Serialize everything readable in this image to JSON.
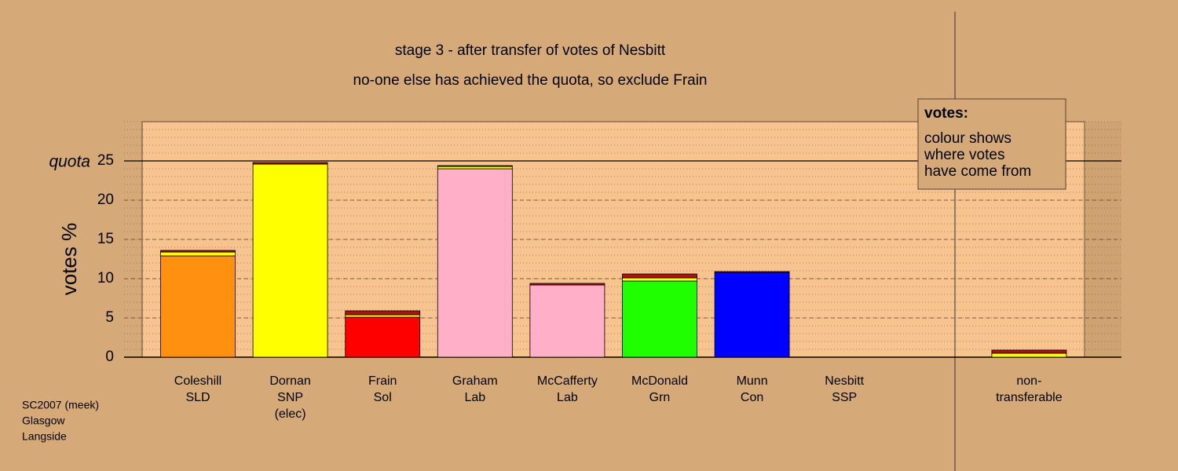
{
  "chart_data": {
    "type": "stacked_bar",
    "title": "stage 3 - after transfer of votes of Nesbitt",
    "subtitle": "no-one else has achieved the quota, so exclude Frain",
    "y_label": "votes %",
    "categories": [
      [
        "Coleshill",
        "SLD"
      ],
      [
        "Dornan",
        "SNP",
        "(elec)"
      ],
      [
        "Frain",
        "Sol"
      ],
      [
        "Graham",
        "Lab"
      ],
      [
        "McCafferty",
        "Lab"
      ],
      [
        "McDonald",
        "Grn"
      ],
      [
        "Munn",
        "Con"
      ],
      [
        "Nesbitt",
        "SSP"
      ],
      null,
      [
        "non-",
        "transferable"
      ]
    ],
    "series": [
      {
        "color": "#ff9010",
        "values": [
          12.9,
          0,
          0,
          0,
          0,
          0,
          0,
          0,
          null,
          0
        ]
      },
      {
        "color": "#ff0000",
        "values": [
          0,
          0,
          5.1,
          0,
          0,
          0,
          0,
          0,
          null,
          0
        ]
      },
      {
        "color": "#ffb0c8",
        "values": [
          0,
          0,
          0,
          24.0,
          9.2,
          0,
          0,
          0,
          null,
          0
        ]
      },
      {
        "color": "#20ff00",
        "values": [
          0,
          0,
          0,
          0,
          0,
          9.7,
          0,
          0,
          null,
          0
        ]
      },
      {
        "color": "#0000ff",
        "values": [
          0,
          0,
          0,
          0,
          0,
          0,
          10.8,
          0,
          null,
          0
        ]
      },
      {
        "color": "#ffff00",
        "values": [
          0.5,
          24.6,
          0.3,
          0.3,
          0,
          0.4,
          0,
          0,
          null,
          0.5
        ]
      },
      {
        "color": "#b01010",
        "values": [
          0.2,
          0.2,
          0.5,
          0.1,
          0.2,
          0.5,
          0.1,
          0,
          null,
          0.4
        ]
      }
    ],
    "quota": {
      "label": "quota",
      "value": 25
    },
    "ylim": [
      0,
      30
    ],
    "yticks": [
      0,
      5,
      10,
      15,
      20,
      25
    ],
    "grid": true,
    "legend": {
      "title": "votes:",
      "lines": [
        "colour shows",
        "where votes",
        "have come from"
      ]
    },
    "footnote": [
      "SC2007 (meek)",
      "Glasgow",
      "Langside"
    ]
  }
}
